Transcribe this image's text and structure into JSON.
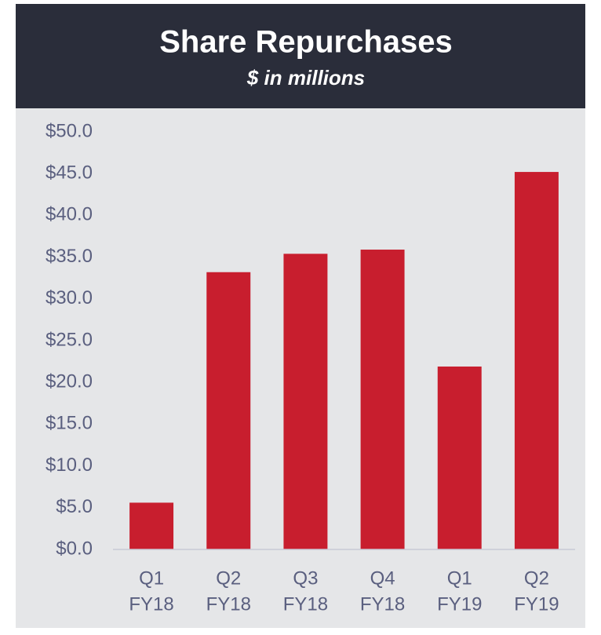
{
  "chart_data": {
    "type": "bar",
    "title": "Share Repurchases",
    "subtitle": "$ in millions",
    "categories": [
      [
        "Q1",
        "FY18"
      ],
      [
        "Q2",
        "FY18"
      ],
      [
        "Q3",
        "FY18"
      ],
      [
        "Q4",
        "FY18"
      ],
      [
        "Q1",
        "FY19"
      ],
      [
        "Q2",
        "FY19"
      ]
    ],
    "values": [
      5.6,
      33.2,
      35.4,
      35.9,
      21.9,
      45.2
    ],
    "color": "#c81e2e",
    "ylim": [
      0,
      50
    ],
    "yticks": [
      {
        "value": 0,
        "label": "$0.0"
      },
      {
        "value": 5,
        "label": "$5.0"
      },
      {
        "value": 10,
        "label": "$10.0"
      },
      {
        "value": 15,
        "label": "$15.0"
      },
      {
        "value": 20,
        "label": "$20.0"
      },
      {
        "value": 25,
        "label": "$25.0"
      },
      {
        "value": 30,
        "label": "$30.0"
      },
      {
        "value": 35,
        "label": "$35.0"
      },
      {
        "value": 40,
        "label": "$40.0"
      },
      {
        "value": 45,
        "label": "$45.0"
      },
      {
        "value": 50,
        "label": "$50.0"
      }
    ],
    "grid": false
  }
}
